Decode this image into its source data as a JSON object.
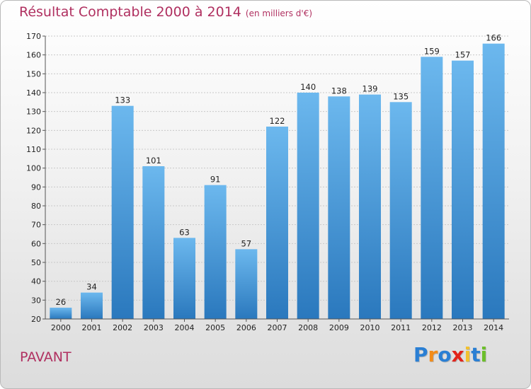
{
  "title": "Résultat Comptable 2000 à 2014",
  "subtitle": "(en milliers d'€)",
  "city": "PAVANT",
  "logo": {
    "letters": [
      "P",
      "r",
      "o",
      "x",
      "i",
      "t",
      "i"
    ],
    "colors": [
      "#2a7fd4",
      "#f28c1a",
      "#2a7fd4",
      "#e2231a",
      "#f2c12e",
      "#2a7fd4",
      "#6cbf2a"
    ]
  },
  "chart_data": {
    "type": "bar",
    "categories": [
      "2000",
      "2001",
      "2002",
      "2003",
      "2004",
      "2005",
      "2006",
      "2007",
      "2008",
      "2009",
      "2010",
      "2011",
      "2012",
      "2013",
      "2014"
    ],
    "values": [
      26,
      34,
      133,
      101,
      63,
      91,
      57,
      122,
      140,
      138,
      139,
      135,
      159,
      157,
      166
    ],
    "ylim": [
      20,
      170
    ],
    "yticks": [
      20,
      30,
      40,
      50,
      60,
      70,
      80,
      90,
      100,
      110,
      120,
      130,
      140,
      150,
      160,
      170
    ],
    "grid": true,
    "bar_color": "#3d9be0"
  }
}
